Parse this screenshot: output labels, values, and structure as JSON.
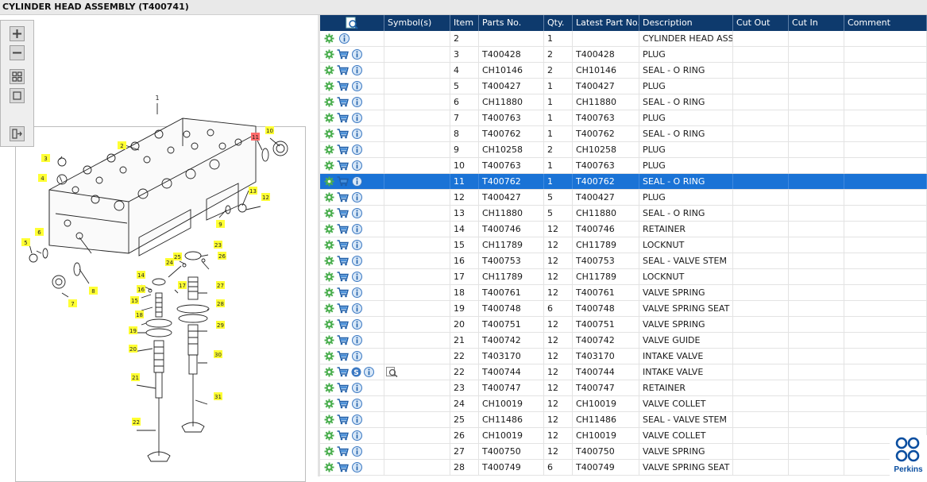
{
  "window": {
    "title": "CYLINDER HEAD ASSEMBLY (T400741)"
  },
  "colors": {
    "header_bg": "#0e3a6d",
    "selection": "#1a73d6",
    "callout": "#ffff33",
    "callout_highlight": "#ff6b6b",
    "brand": "#0a4ea0"
  },
  "toolbar": {
    "zoom_in": "zoom-in-icon",
    "zoom_out": "zoom-out-icon",
    "fit_all": "fit-all-icon",
    "actual_size": "actual-size-icon",
    "move_panel": "move-panel-icon"
  },
  "diagram": {
    "assembly_number": "1",
    "callouts": [
      "2",
      "3",
      "4",
      "5",
      "6",
      "7",
      "8",
      "9",
      "10",
      "11",
      "12",
      "13",
      "14",
      "15",
      "16",
      "17",
      "18",
      "19",
      "20",
      "21",
      "22",
      "23",
      "24",
      "25",
      "26",
      "27",
      "28",
      "29",
      "30",
      "31"
    ],
    "highlighted_callout": "11"
  },
  "grid": {
    "header_icon": "search-document-icon",
    "columns": [
      "Symbol(s)",
      "Item",
      "Parts No.",
      "Qty.",
      "Latest Part No.",
      "Description",
      "Cut Out",
      "Cut In",
      "Comment"
    ],
    "selected_item": "11",
    "rows": [
      {
        "item": "2",
        "part": "",
        "qty": "1",
        "latest": "",
        "desc": "CYLINDER HEAD ASSEMBLY",
        "cart": false,
        "symbol": false,
        "preview": false
      },
      {
        "item": "3",
        "part": "T400428",
        "qty": "2",
        "latest": "T400428",
        "desc": "PLUG",
        "cart": true
      },
      {
        "item": "4",
        "part": "CH10146",
        "qty": "2",
        "latest": "CH10146",
        "desc": "SEAL - O RING",
        "cart": true
      },
      {
        "item": "5",
        "part": "T400427",
        "qty": "1",
        "latest": "T400427",
        "desc": "PLUG",
        "cart": true
      },
      {
        "item": "6",
        "part": "CH11880",
        "qty": "1",
        "latest": "CH11880",
        "desc": "SEAL - O RING",
        "cart": true
      },
      {
        "item": "7",
        "part": "T400763",
        "qty": "1",
        "latest": "T400763",
        "desc": "PLUG",
        "cart": true
      },
      {
        "item": "8",
        "part": "T400762",
        "qty": "1",
        "latest": "T400762",
        "desc": "SEAL - O RING",
        "cart": true
      },
      {
        "item": "9",
        "part": "CH10258",
        "qty": "2",
        "latest": "CH10258",
        "desc": "PLUG",
        "cart": true
      },
      {
        "item": "10",
        "part": "T400763",
        "qty": "1",
        "latest": "T400763",
        "desc": "PLUG",
        "cart": true
      },
      {
        "item": "11",
        "part": "T400762",
        "qty": "1",
        "latest": "T400762",
        "desc": "SEAL - O RING",
        "cart": true,
        "selected": true
      },
      {
        "item": "12",
        "part": "T400427",
        "qty": "5",
        "latest": "T400427",
        "desc": "PLUG",
        "cart": true
      },
      {
        "item": "13",
        "part": "CH11880",
        "qty": "5",
        "latest": "CH11880",
        "desc": "SEAL - O RING",
        "cart": true
      },
      {
        "item": "14",
        "part": "T400746",
        "qty": "12",
        "latest": "T400746",
        "desc": "RETAINER",
        "cart": true
      },
      {
        "item": "15",
        "part": "CH11789",
        "qty": "12",
        "latest": "CH11789",
        "desc": "LOCKNUT",
        "cart": true
      },
      {
        "item": "16",
        "part": "T400753",
        "qty": "12",
        "latest": "T400753",
        "desc": "SEAL - VALVE STEM",
        "cart": true
      },
      {
        "item": "17",
        "part": "CH11789",
        "qty": "12",
        "latest": "CH11789",
        "desc": "LOCKNUT",
        "cart": true
      },
      {
        "item": "18",
        "part": "T400761",
        "qty": "12",
        "latest": "T400761",
        "desc": "VALVE SPRING",
        "cart": true
      },
      {
        "item": "19",
        "part": "T400748",
        "qty": "6",
        "latest": "T400748",
        "desc": "VALVE SPRING SEAT",
        "cart": true
      },
      {
        "item": "20",
        "part": "T400751",
        "qty": "12",
        "latest": "T400751",
        "desc": "VALVE SPRING",
        "cart": true
      },
      {
        "item": "21",
        "part": "T400742",
        "qty": "12",
        "latest": "T400742",
        "desc": "VALVE GUIDE",
        "cart": true
      },
      {
        "item": "22",
        "part": "T403170",
        "qty": "12",
        "latest": "T403170",
        "desc": "INTAKE VALVE",
        "cart": true
      },
      {
        "item": "22",
        "part": "T400744",
        "qty": "12",
        "latest": "T400744",
        "desc": "INTAKE VALVE",
        "cart": true,
        "symbol": true,
        "preview": true
      },
      {
        "item": "23",
        "part": "T400747",
        "qty": "12",
        "latest": "T400747",
        "desc": "RETAINER",
        "cart": true
      },
      {
        "item": "24",
        "part": "CH10019",
        "qty": "12",
        "latest": "CH10019",
        "desc": "VALVE COLLET",
        "cart": true
      },
      {
        "item": "25",
        "part": "CH11486",
        "qty": "12",
        "latest": "CH11486",
        "desc": "SEAL - VALVE STEM",
        "cart": true
      },
      {
        "item": "26",
        "part": "CH10019",
        "qty": "12",
        "latest": "CH10019",
        "desc": "VALVE COLLET",
        "cart": true
      },
      {
        "item": "27",
        "part": "T400750",
        "qty": "12",
        "latest": "T400750",
        "desc": "VALVE SPRING",
        "cart": true
      },
      {
        "item": "28",
        "part": "T400749",
        "qty": "6",
        "latest": "T400749",
        "desc": "VALVE SPRING SEAT",
        "cart": true
      }
    ]
  },
  "brand": {
    "name": "Perkins"
  }
}
